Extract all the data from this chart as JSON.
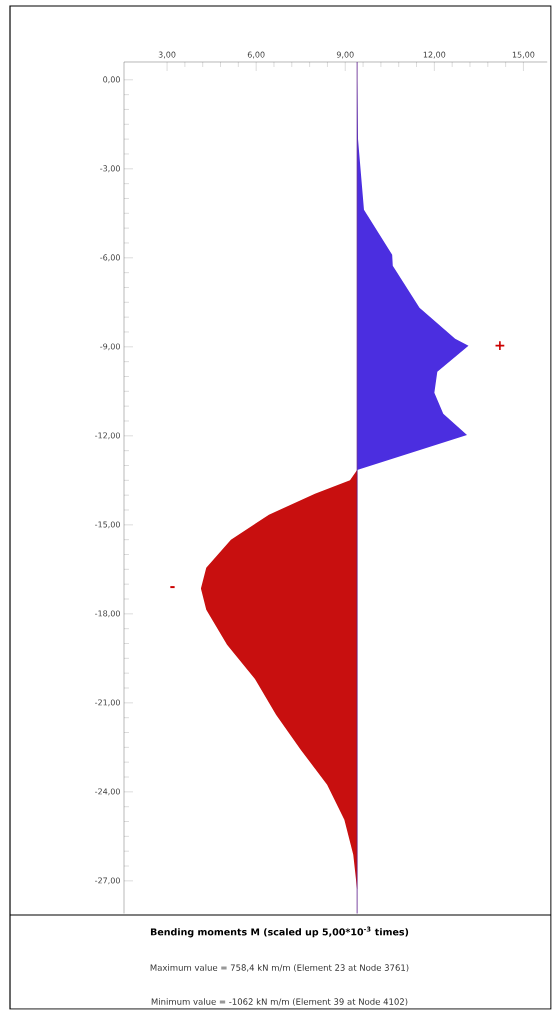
{
  "chart_data": {
    "type": "area",
    "title": "**Bending moments M (scaled up 5,00*10$^{-3}$ times)**",
    "xlim": [
      1.55,
      15.8
    ],
    "ylim": [
      -28.1,
      0.6
    ],
    "xticks": [
      {
        "value": 3,
        "label": "3,00"
      },
      {
        "value": 6,
        "label": "6,00"
      },
      {
        "value": 9,
        "label": "9,00"
      },
      {
        "value": 12,
        "label": "12,00"
      },
      {
        "value": 15,
        "label": "15,00"
      }
    ],
    "yticks": [
      {
        "value": 0,
        "label": "0,00"
      },
      {
        "value": -3,
        "label": "-3,00"
      },
      {
        "value": -6,
        "label": "-6,00"
      },
      {
        "value": -9,
        "label": "-9,00"
      },
      {
        "value": -12,
        "label": "-12,00"
      },
      {
        "value": -15,
        "label": "-15,00"
      },
      {
        "value": -18,
        "label": "-18,00"
      },
      {
        "value": -21,
        "label": "-21,00"
      },
      {
        "value": -24,
        "label": "-24,00"
      },
      {
        "value": -27,
        "label": "-27,00"
      }
    ],
    "series": [
      {
        "color": "#4b2ee0",
        "x": [
          9.4,
          9.43,
          9.63,
          10.58,
          10.6,
          11.5,
          12.7,
          13.15,
          12.1,
          12.0,
          12.3,
          13.1,
          9.4
        ],
        "values": [
          0,
          -2.0,
          -4.38,
          -5.9,
          -6.27,
          -7.68,
          -8.73,
          -8.96,
          -9.84,
          -10.55,
          -11.26,
          -11.97,
          -13.15
        ]
      },
      {
        "color": "#c80f0f",
        "x": [
          9.4,
          9.16,
          7.98,
          6.43,
          5.15,
          4.32,
          4.14,
          4.32,
          5.02,
          5.96,
          6.67,
          7.5,
          8.39,
          8.97,
          9.27,
          9.4,
          9.4
        ],
        "values": [
          -13.15,
          -13.5,
          -13.95,
          -14.66,
          -15.5,
          -16.45,
          -17.15,
          -17.86,
          -19.04,
          -20.2,
          -21.4,
          -22.58,
          -23.76,
          -24.94,
          -26.12,
          -27.3,
          -27.94
        ]
      }
    ],
    "ref_lines": [
      {
        "axis": "x",
        "value": 9.4,
        "color": "#5a1a8a"
      }
    ],
    "annotations": [
      "+",
      "-",
      "Maximum value = 758,4 kN m/m (Element 23 at Node 3761)",
      "Minimum value = -1062 kN m/m (Element 39 at Node 4102)"
    ]
  }
}
